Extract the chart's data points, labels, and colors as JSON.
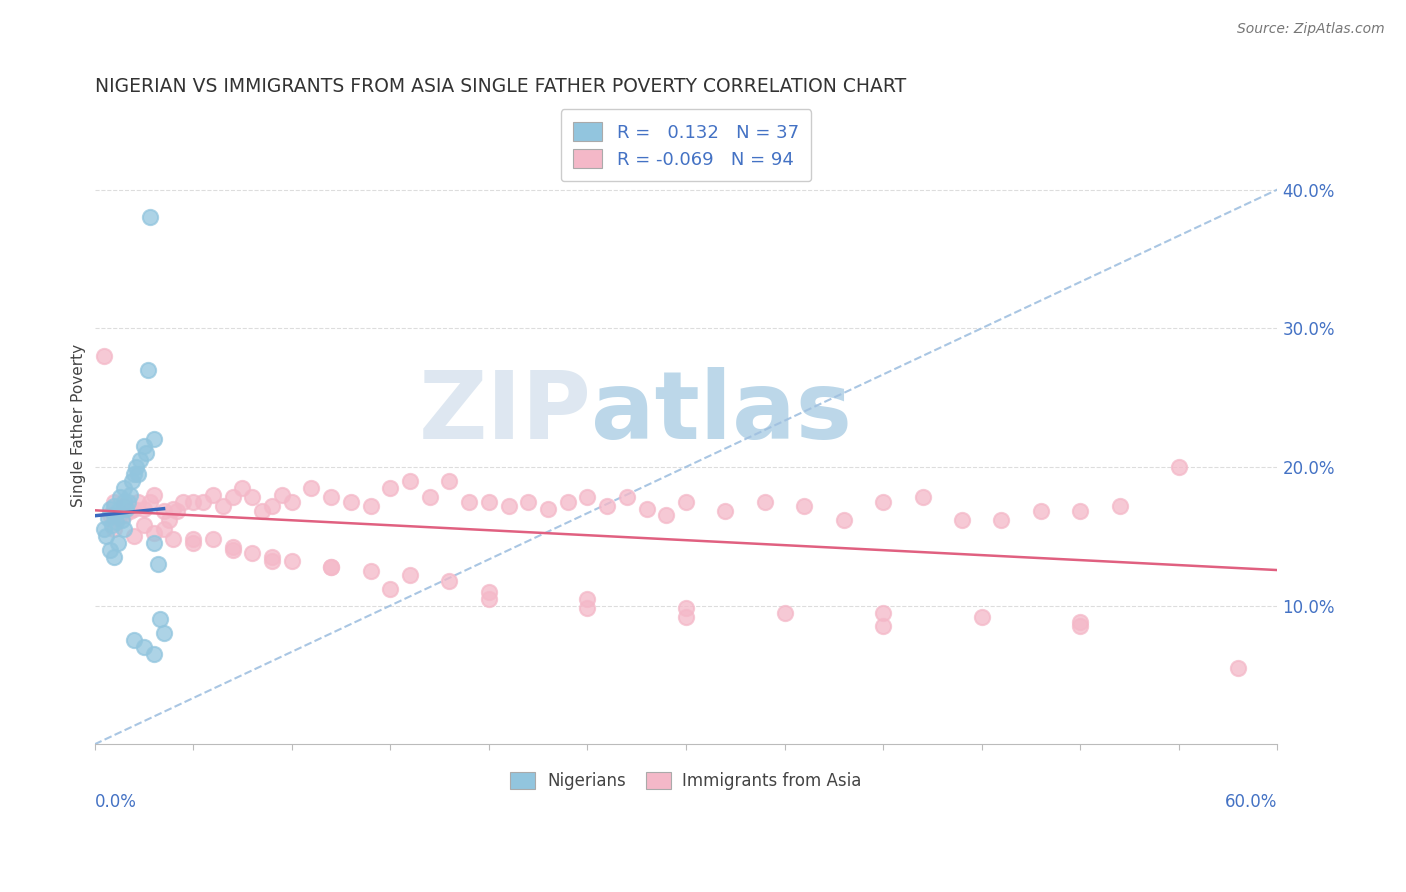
{
  "title": "NIGERIAN VS IMMIGRANTS FROM ASIA SINGLE FATHER POVERTY CORRELATION CHART",
  "source": "Source: ZipAtlas.com",
  "ylabel": "Single Father Poverty",
  "r_nigerian": 0.132,
  "n_nigerian": 37,
  "r_asian": -0.069,
  "n_asian": 94,
  "xlim": [
    0.0,
    0.6
  ],
  "ylim": [
    0.0,
    0.46
  ],
  "blue_color": "#92c5de",
  "pink_color": "#f4b8c8",
  "trendline_blue": "#3a6abf",
  "trendline_pink": "#e06080",
  "trendline_dashed_color": "#a0c0e0",
  "legend_label_blue": "Nigerians",
  "legend_label_pink": "Immigrants from Asia",
  "nigerian_x": [
    0.005,
    0.007,
    0.008,
    0.009,
    0.01,
    0.01,
    0.011,
    0.012,
    0.013,
    0.014,
    0.015,
    0.015,
    0.016,
    0.017,
    0.018,
    0.019,
    0.02,
    0.021,
    0.022,
    0.023,
    0.025,
    0.026,
    0.027,
    0.028,
    0.03,
    0.03,
    0.032,
    0.033,
    0.035,
    0.006,
    0.008,
    0.01,
    0.012,
    0.015,
    0.02,
    0.025,
    0.03
  ],
  "nigerian_y": [
    0.155,
    0.163,
    0.17,
    0.158,
    0.172,
    0.165,
    0.16,
    0.168,
    0.178,
    0.162,
    0.175,
    0.185,
    0.17,
    0.175,
    0.18,
    0.19,
    0.195,
    0.2,
    0.195,
    0.205,
    0.215,
    0.21,
    0.27,
    0.38,
    0.22,
    0.145,
    0.13,
    0.09,
    0.08,
    0.15,
    0.14,
    0.135,
    0.145,
    0.155,
    0.075,
    0.07,
    0.065
  ],
  "asian_x": [
    0.005,
    0.008,
    0.01,
    0.012,
    0.015,
    0.018,
    0.02,
    0.022,
    0.025,
    0.028,
    0.03,
    0.035,
    0.038,
    0.04,
    0.042,
    0.045,
    0.05,
    0.055,
    0.06,
    0.065,
    0.07,
    0.075,
    0.08,
    0.085,
    0.09,
    0.095,
    0.1,
    0.11,
    0.12,
    0.13,
    0.14,
    0.15,
    0.16,
    0.17,
    0.18,
    0.19,
    0.2,
    0.21,
    0.22,
    0.23,
    0.24,
    0.25,
    0.26,
    0.27,
    0.28,
    0.29,
    0.3,
    0.32,
    0.34,
    0.36,
    0.38,
    0.4,
    0.42,
    0.44,
    0.46,
    0.48,
    0.5,
    0.52,
    0.55,
    0.01,
    0.02,
    0.03,
    0.04,
    0.05,
    0.06,
    0.07,
    0.08,
    0.09,
    0.1,
    0.12,
    0.14,
    0.16,
    0.18,
    0.2,
    0.25,
    0.3,
    0.35,
    0.4,
    0.45,
    0.5,
    0.015,
    0.025,
    0.035,
    0.05,
    0.07,
    0.09,
    0.12,
    0.15,
    0.2,
    0.25,
    0.3,
    0.4,
    0.5,
    0.58
  ],
  "asian_y": [
    0.28,
    0.165,
    0.175,
    0.163,
    0.172,
    0.168,
    0.17,
    0.175,
    0.17,
    0.175,
    0.18,
    0.168,
    0.162,
    0.17,
    0.168,
    0.175,
    0.175,
    0.175,
    0.18,
    0.172,
    0.178,
    0.185,
    0.178,
    0.168,
    0.172,
    0.18,
    0.175,
    0.185,
    0.178,
    0.175,
    0.172,
    0.185,
    0.19,
    0.178,
    0.19,
    0.175,
    0.175,
    0.172,
    0.175,
    0.17,
    0.175,
    0.178,
    0.172,
    0.178,
    0.17,
    0.165,
    0.175,
    0.168,
    0.175,
    0.172,
    0.162,
    0.175,
    0.178,
    0.162,
    0.162,
    0.168,
    0.168,
    0.172,
    0.2,
    0.155,
    0.15,
    0.152,
    0.148,
    0.145,
    0.148,
    0.14,
    0.138,
    0.135,
    0.132,
    0.128,
    0.125,
    0.122,
    0.118,
    0.11,
    0.105,
    0.098,
    0.095,
    0.095,
    0.092,
    0.088,
    0.165,
    0.158,
    0.155,
    0.148,
    0.142,
    0.132,
    0.128,
    0.112,
    0.105,
    0.098,
    0.092,
    0.085,
    0.085,
    0.055
  ]
}
